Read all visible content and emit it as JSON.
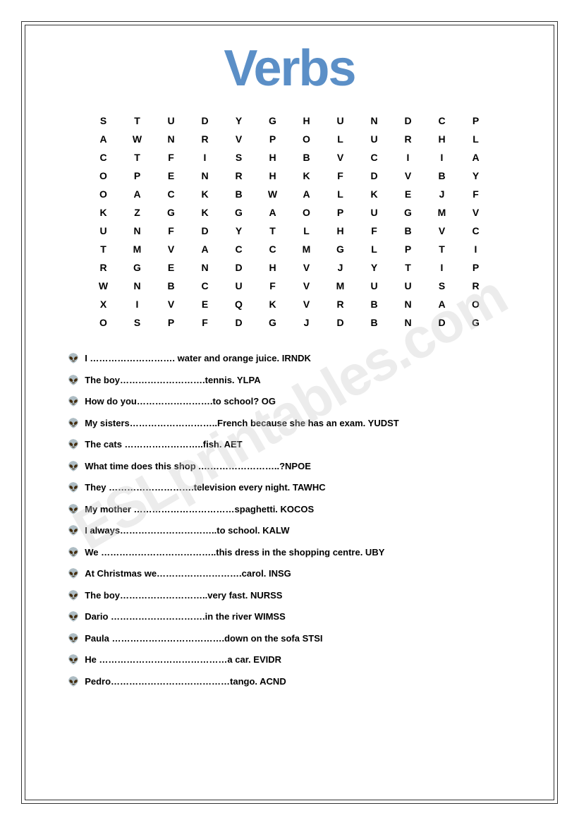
{
  "title": "Verbs",
  "watermark": "ESLprintables.com",
  "grid": {
    "rows": [
      [
        "S",
        "T",
        "U",
        "D",
        "Y",
        "G",
        "H",
        "U",
        "N",
        "D",
        "C",
        "P"
      ],
      [
        "A",
        "W",
        "N",
        "R",
        "V",
        "P",
        "O",
        "L",
        "U",
        "R",
        "H",
        "L"
      ],
      [
        "C",
        "T",
        "F",
        "I",
        "S",
        "H",
        "B",
        "V",
        "C",
        "I",
        "I",
        "A"
      ],
      [
        "O",
        "P",
        "E",
        "N",
        "R",
        "H",
        "K",
        "F",
        "D",
        "V",
        "B",
        "Y"
      ],
      [
        "O",
        "A",
        "C",
        "K",
        "B",
        "W",
        "A",
        "L",
        "K",
        "E",
        "J",
        "F"
      ],
      [
        "K",
        "Z",
        "G",
        "K",
        "G",
        "A",
        "O",
        "P",
        "U",
        "G",
        "M",
        "V"
      ],
      [
        "U",
        "N",
        "F",
        "D",
        "Y",
        "T",
        "L",
        "H",
        "F",
        "B",
        "V",
        "C"
      ],
      [
        "T",
        "M",
        "V",
        "A",
        "C",
        "C",
        "M",
        "G",
        "L",
        "P",
        "T",
        "I"
      ],
      [
        "R",
        "G",
        "E",
        "N",
        "D",
        "H",
        "V",
        "J",
        "Y",
        "T",
        "I",
        "P"
      ],
      [
        "W",
        "N",
        "B",
        "C",
        "U",
        "F",
        "V",
        "M",
        "U",
        "U",
        "S",
        "R"
      ],
      [
        "X",
        "I",
        "V",
        "E",
        "Q",
        "K",
        "V",
        "R",
        "B",
        "N",
        "A",
        "O"
      ],
      [
        "O",
        "S",
        "P",
        "F",
        "D",
        "G",
        "J",
        "D",
        "B",
        "N",
        "D",
        "G"
      ]
    ],
    "cols": 12,
    "cell_fontsize": 14,
    "cell_color": "#000000"
  },
  "sentences": [
    "I ………………………. water and orange juice. IRNDK",
    "The boy……………………….tennis. YLPA",
    "How do you…………………….to school? OG",
    "My sisters………………………..French because she has an exam. YUDST",
    "The cats ……………………..fish. AET",
    "What time does this shop .……………………..?NPOE",
    "They ……………………….television every night. TAWHC",
    "My mother ……………………………spaghetti. KOCOS",
    "I always…………………………..to school. KALW",
    "We ………………………………..this dress in the shopping centre. UBY",
    "At Christmas we……………………….carol. INSG",
    "The boy………………………..very fast. NURSS",
    "Dario ………………………….in the river  WIMSS",
    "Paula ……………………………….down on the sofa STSI",
    "He ……………………………………a car. EVIDR",
    "Pedro…………………………………tango. ACND"
  ],
  "bullet": "👽",
  "colors": {
    "title": "#5b8fc7",
    "text": "#000000",
    "background": "#ffffff",
    "border": "#333333",
    "watermark": "rgba(200,200,200,0.35)"
  }
}
